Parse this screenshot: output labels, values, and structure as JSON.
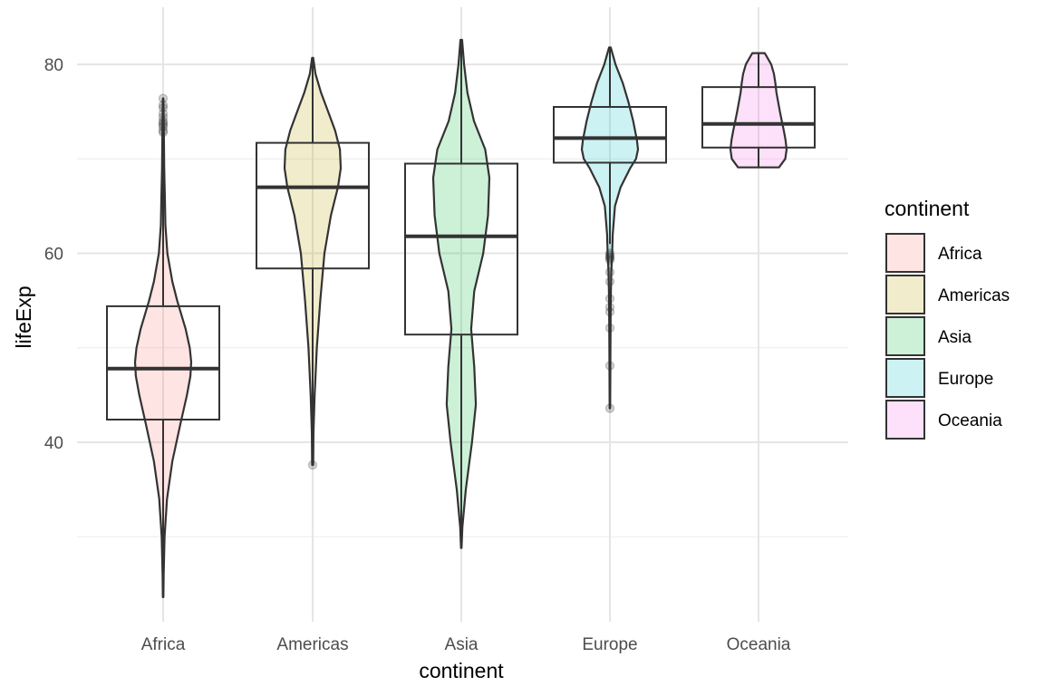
{
  "chart_data": {
    "type": "violin",
    "xlabel": "continent",
    "ylabel": "lifeExp",
    "categories": [
      "Africa",
      "Americas",
      "Asia",
      "Europe",
      "Oceania"
    ],
    "ylim": [
      22,
      85
    ],
    "yticks": [
      40,
      60,
      80
    ],
    "grid": true,
    "legend": {
      "title": "continent",
      "position": "right"
    },
    "colors": {
      "Africa": "#F8766D",
      "Americas": "#B79F00",
      "Asia": "#00BA38",
      "Europe": "#00BFC4",
      "Oceania": "#F564E3"
    },
    "series": [
      {
        "name": "Africa",
        "box": {
          "min": 23.6,
          "q1": 42.4,
          "median": 47.8,
          "q3": 54.4,
          "max": 76.4
        },
        "outliers": [
          72.8,
          73.0,
          73.4,
          73.6,
          73.8,
          74.0,
          74.4,
          74.8,
          75.4,
          75.7,
          76.4
        ],
        "density": [
          [
            23.6,
            0.01
          ],
          [
            26,
            0.02
          ],
          [
            30,
            0.05
          ],
          [
            34,
            0.14
          ],
          [
            38,
            0.33
          ],
          [
            42,
            0.62
          ],
          [
            45,
            0.85
          ],
          [
            47,
            0.97
          ],
          [
            48.5,
            1.0
          ],
          [
            50,
            0.95
          ],
          [
            52,
            0.8
          ],
          [
            55,
            0.5
          ],
          [
            57,
            0.33
          ],
          [
            60,
            0.15
          ],
          [
            63,
            0.08
          ],
          [
            66,
            0.06
          ],
          [
            69,
            0.04
          ],
          [
            72,
            0.03
          ],
          [
            74,
            0.02
          ],
          [
            76.4,
            0.01
          ]
        ]
      },
      {
        "name": "Americas",
        "box": {
          "min": 37.6,
          "q1": 58.4,
          "median": 67.0,
          "q3": 71.7,
          "max": 80.7
        },
        "outliers": [
          37.6
        ],
        "density": [
          [
            37.6,
            0.02
          ],
          [
            41,
            0.03
          ],
          [
            45,
            0.07
          ],
          [
            50,
            0.15
          ],
          [
            55,
            0.27
          ],
          [
            60,
            0.42
          ],
          [
            64,
            0.65
          ],
          [
            67,
            0.9
          ],
          [
            69,
            1.0
          ],
          [
            71,
            0.97
          ],
          [
            73,
            0.8
          ],
          [
            75,
            0.55
          ],
          [
            77,
            0.3
          ],
          [
            79,
            0.1
          ],
          [
            80.7,
            0.02
          ]
        ]
      },
      {
        "name": "Asia",
        "box": {
          "min": 28.8,
          "q1": 51.4,
          "median": 61.8,
          "q3": 69.5,
          "max": 82.6
        },
        "outliers": [],
        "density": [
          [
            28.8,
            0.01
          ],
          [
            31,
            0.04
          ],
          [
            35,
            0.16
          ],
          [
            40,
            0.38
          ],
          [
            44,
            0.52
          ],
          [
            48,
            0.46
          ],
          [
            52,
            0.35
          ],
          [
            56,
            0.46
          ],
          [
            60,
            0.78
          ],
          [
            64,
            0.95
          ],
          [
            68,
            1.0
          ],
          [
            71,
            0.85
          ],
          [
            74,
            0.45
          ],
          [
            77,
            0.22
          ],
          [
            80,
            0.1
          ],
          [
            82.6,
            0.03
          ]
        ]
      },
      {
        "name": "Europe",
        "box": {
          "min": 61.0,
          "q1": 69.6,
          "median": 72.2,
          "q3": 75.5,
          "max": 81.8
        },
        "outliers": [
          43.6,
          48.1,
          52.1,
          53.8,
          54.3,
          55.2,
          57.0,
          58.0,
          59.3,
          59.5,
          59.6,
          59.8,
          60.0
        ],
        "density": [
          [
            43.6,
            0.01
          ],
          [
            50,
            0.02
          ],
          [
            55,
            0.03
          ],
          [
            58,
            0.05
          ],
          [
            60,
            0.08
          ],
          [
            62,
            0.1
          ],
          [
            65,
            0.18
          ],
          [
            67,
            0.38
          ],
          [
            69,
            0.72
          ],
          [
            70,
            0.93
          ],
          [
            71,
            1.0
          ],
          [
            72,
            0.96
          ],
          [
            74,
            0.83
          ],
          [
            76,
            0.66
          ],
          [
            78,
            0.46
          ],
          [
            80,
            0.2
          ],
          [
            81.8,
            0.03
          ]
        ]
      },
      {
        "name": "Oceania",
        "box": {
          "min": 69.1,
          "q1": 71.2,
          "median": 73.7,
          "q3": 77.6,
          "max": 81.2
        },
        "outliers": [],
        "density": [
          [
            69.1,
            0.73
          ],
          [
            70,
            0.95
          ],
          [
            71,
            1.0
          ],
          [
            72,
            0.96
          ],
          [
            73,
            0.9
          ],
          [
            74,
            0.83
          ],
          [
            75,
            0.76
          ],
          [
            76,
            0.7
          ],
          [
            77,
            0.64
          ],
          [
            78,
            0.6
          ],
          [
            79,
            0.55
          ],
          [
            80,
            0.45
          ],
          [
            80.8,
            0.3
          ],
          [
            81.2,
            0.22
          ]
        ]
      }
    ]
  }
}
